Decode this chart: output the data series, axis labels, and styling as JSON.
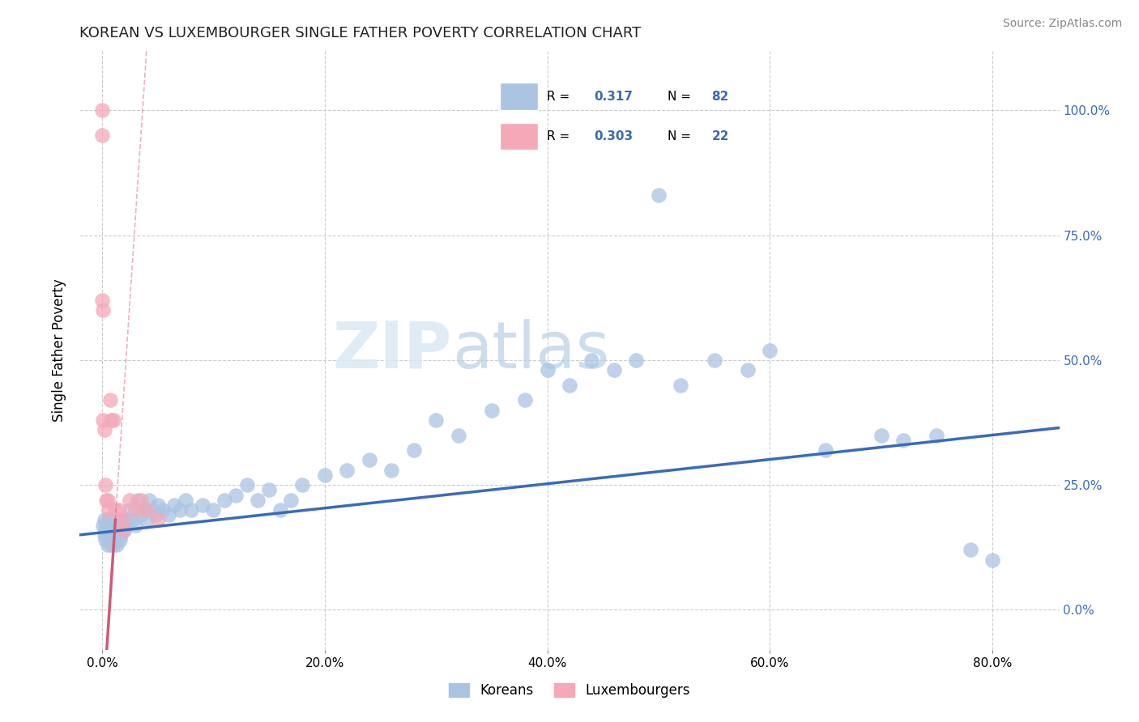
{
  "title": "KOREAN VS LUXEMBOURGER SINGLE FATHER POVERTY CORRELATION CHART",
  "source": "Source: ZipAtlas.com",
  "ylabel": "Single Father Poverty",
  "xlabel_ticks": [
    "0.0%",
    "20.0%",
    "40.0%",
    "60.0%",
    "80.0%"
  ],
  "xlabel_vals": [
    0.0,
    0.2,
    0.4,
    0.6,
    0.8
  ],
  "ylabel_ticks": [
    "0.0%",
    "25.0%",
    "50.0%",
    "75.0%",
    "100.0%"
  ],
  "ylabel_vals": [
    0.0,
    0.25,
    0.5,
    0.75,
    1.0
  ],
  "xlim": [
    -0.02,
    0.86
  ],
  "ylim": [
    -0.08,
    1.12
  ],
  "korean_R": 0.317,
  "korean_N": 82,
  "lux_R": 0.303,
  "lux_N": 22,
  "korean_color": "#aac4e2",
  "lux_color": "#f4a8b8",
  "korean_line_color": "#3a6bba",
  "lux_line_color": "#d05878",
  "grid_color": "#cccccc",
  "watermark_zip": "ZIP",
  "watermark_atlas": "atlas",
  "korean_x": [
    0.001,
    0.002,
    0.002,
    0.003,
    0.003,
    0.004,
    0.005,
    0.005,
    0.006,
    0.006,
    0.007,
    0.007,
    0.008,
    0.008,
    0.009,
    0.009,
    0.01,
    0.01,
    0.01,
    0.011,
    0.012,
    0.012,
    0.013,
    0.014,
    0.015,
    0.016,
    0.017,
    0.018,
    0.02,
    0.022,
    0.025,
    0.027,
    0.03,
    0.032,
    0.035,
    0.038,
    0.04,
    0.042,
    0.045,
    0.048,
    0.05,
    0.055,
    0.06,
    0.065,
    0.07,
    0.075,
    0.08,
    0.09,
    0.1,
    0.11,
    0.12,
    0.13,
    0.14,
    0.15,
    0.16,
    0.17,
    0.18,
    0.2,
    0.22,
    0.24,
    0.26,
    0.28,
    0.3,
    0.32,
    0.35,
    0.38,
    0.4,
    0.42,
    0.44,
    0.46,
    0.48,
    0.5,
    0.52,
    0.55,
    0.58,
    0.6,
    0.65,
    0.7,
    0.72,
    0.75,
    0.78,
    0.8
  ],
  "korean_y": [
    0.17,
    0.15,
    0.18,
    0.16,
    0.14,
    0.17,
    0.15,
    0.13,
    0.16,
    0.18,
    0.14,
    0.17,
    0.15,
    0.13,
    0.16,
    0.14,
    0.15,
    0.13,
    0.16,
    0.14,
    0.17,
    0.15,
    0.13,
    0.16,
    0.18,
    0.14,
    0.15,
    0.17,
    0.16,
    0.18,
    0.2,
    0.18,
    0.17,
    0.22,
    0.19,
    0.2,
    0.18,
    0.22,
    0.2,
    0.19,
    0.21,
    0.2,
    0.19,
    0.21,
    0.2,
    0.22,
    0.2,
    0.21,
    0.2,
    0.22,
    0.23,
    0.25,
    0.22,
    0.24,
    0.2,
    0.22,
    0.25,
    0.27,
    0.28,
    0.3,
    0.28,
    0.32,
    0.38,
    0.35,
    0.4,
    0.42,
    0.48,
    0.45,
    0.5,
    0.48,
    0.5,
    0.83,
    0.45,
    0.5,
    0.48,
    0.52,
    0.32,
    0.35,
    0.34,
    0.35,
    0.12,
    0.1
  ],
  "lux_x": [
    0.0,
    0.0,
    0.0,
    0.001,
    0.001,
    0.002,
    0.003,
    0.004,
    0.005,
    0.006,
    0.007,
    0.008,
    0.01,
    0.012,
    0.015,
    0.018,
    0.02,
    0.025,
    0.03,
    0.035,
    0.04,
    0.05
  ],
  "lux_y": [
    1.0,
    0.95,
    0.62,
    0.6,
    0.38,
    0.36,
    0.25,
    0.22,
    0.22,
    0.2,
    0.42,
    0.38,
    0.38,
    0.2,
    0.2,
    0.18,
    0.16,
    0.22,
    0.2,
    0.22,
    0.2,
    0.18
  ],
  "lux_line_x_start": -0.005,
  "lux_line_x_solid_end": 0.012,
  "lux_line_x_dash_end": 0.18,
  "korean_line_x_start": -0.02,
  "korean_line_x_end": 0.86
}
